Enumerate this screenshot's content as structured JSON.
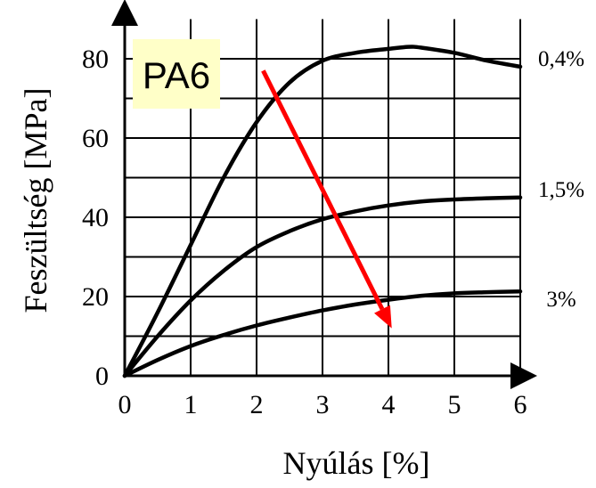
{
  "chart_data": {
    "type": "line",
    "title": "",
    "xlabel": "Nyúlás [%]",
    "ylabel": "Feszültség [MPa]",
    "xlim": [
      0,
      6
    ],
    "ylim": [
      0,
      90
    ],
    "x_ticks": [
      "0",
      "1",
      "2",
      "3",
      "4",
      "5",
      "6"
    ],
    "y_ticks": [
      "0",
      "20",
      "40",
      "60",
      "80"
    ],
    "grid": true,
    "annotation_box": {
      "text": "PA6",
      "fill": "#ffffc8"
    },
    "arrow": {
      "color": "#ff0000",
      "from": [
        2.1,
        77
      ],
      "to": [
        4.05,
        12
      ]
    },
    "series": [
      {
        "name": "0,4%",
        "color": "#000000",
        "x": [
          0,
          0.5,
          1,
          1.5,
          2,
          2.5,
          3,
          3.5,
          4,
          4.3,
          4.5,
          5,
          5.5,
          6
        ],
        "y": [
          0,
          16,
          33,
          50,
          64,
          74,
          79.5,
          81.5,
          82.5,
          83,
          82.8,
          81.5,
          79.5,
          78
        ]
      },
      {
        "name": "1,5%",
        "color": "#000000",
        "x": [
          0,
          0.5,
          1,
          1.5,
          2,
          2.5,
          3,
          3.5,
          4,
          4.5,
          5,
          5.5,
          6
        ],
        "y": [
          0,
          10,
          19,
          26.5,
          32.5,
          36.5,
          39.5,
          41.5,
          43,
          44,
          44.5,
          44.8,
          45
        ]
      },
      {
        "name": "3%",
        "color": "#000000",
        "x": [
          0,
          0.5,
          1,
          1.5,
          2,
          2.5,
          3,
          3.5,
          4,
          4.5,
          5,
          5.5,
          6
        ],
        "y": [
          0,
          4,
          7.5,
          10.3,
          12.7,
          14.7,
          16.5,
          18,
          19.2,
          20.2,
          20.8,
          21.1,
          21.3
        ]
      }
    ]
  }
}
